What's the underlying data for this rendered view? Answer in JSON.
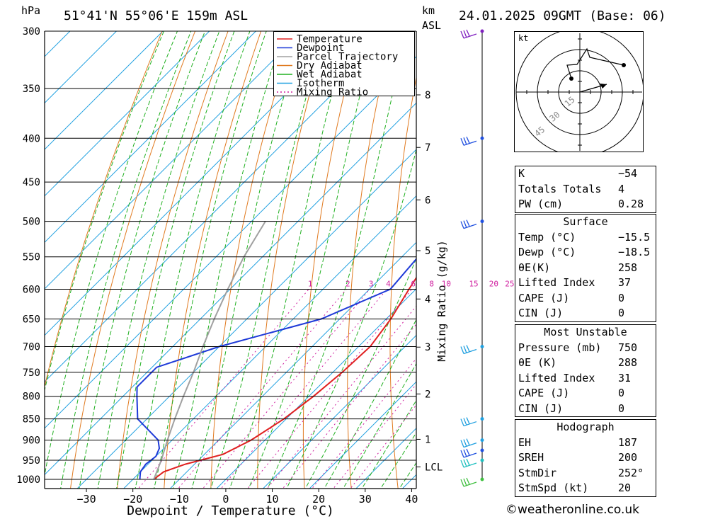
{
  "header": {
    "hpa_label": "hPa",
    "location": "51°41'N 55°06'E 159m ASL",
    "km_label": "km",
    "asl_label": "ASL",
    "datetime": "24.01.2025 09GMT (Base: 06)"
  },
  "colors": {
    "temperature": "#e02020",
    "dewpoint": "#1e3ad8",
    "parcel": "#a0a0a0",
    "dry_adiabat": "#e07a20",
    "wet_adiabat": "#20b020",
    "isotherm": "#1fa0e0",
    "mixing_ratio": "#d020a0"
  },
  "legend": [
    {
      "label": "Temperature",
      "color_key": "temperature",
      "dash": "solid"
    },
    {
      "label": "Dewpoint",
      "color_key": "dewpoint",
      "dash": "solid"
    },
    {
      "label": "Parcel Trajectory",
      "color_key": "parcel",
      "dash": "solid"
    },
    {
      "label": "Dry Adiabat",
      "color_key": "dry_adiabat",
      "dash": "solid"
    },
    {
      "label": "Wet Adiabat",
      "color_key": "wet_adiabat",
      "dash": "solid"
    },
    {
      "label": "Isotherm",
      "color_key": "isotherm",
      "dash": "solid"
    },
    {
      "label": "Mixing Ratio",
      "color_key": "mixing_ratio",
      "dash": "dotted"
    }
  ],
  "chart_data": {
    "type": "line",
    "xlabel": "Dewpoint / Temperature (°C)",
    "x_ticks": [
      -30,
      -20,
      -10,
      0,
      10,
      20,
      30,
      40
    ],
    "xlim": [
      -39,
      41
    ],
    "pressure_levels": [
      300,
      350,
      400,
      450,
      500,
      550,
      600,
      650,
      700,
      750,
      800,
      850,
      900,
      950,
      1000
    ],
    "ylim": [
      300,
      1025
    ],
    "km_ticks": [
      {
        "label": "8",
        "p": 356
      },
      {
        "label": "7",
        "p": 410
      },
      {
        "label": "6",
        "p": 472
      },
      {
        "label": "5",
        "p": 541
      },
      {
        "label": "4",
        "p": 616
      },
      {
        "label": "3",
        "p": 701
      },
      {
        "label": "2",
        "p": 795
      },
      {
        "label": "1",
        "p": 898
      },
      {
        "label": "LCL",
        "p": 967
      }
    ],
    "mixing_ratio_label": "Mixing Ratio (g/kg)",
    "mixing_ratios": [
      "1",
      "2",
      "3",
      "4",
      "6",
      "8",
      "10",
      "15",
      "20",
      "25"
    ],
    "series": [
      {
        "name": "Temperature",
        "points": [
          [
            -15.5,
            1000
          ],
          [
            -15,
            980
          ],
          [
            -12,
            960
          ],
          [
            -6,
            935
          ],
          [
            -3,
            900
          ],
          [
            -0.5,
            850
          ],
          [
            1,
            800
          ],
          [
            2,
            750
          ],
          [
            2.5,
            700
          ],
          [
            1,
            650
          ],
          [
            -1.5,
            600
          ],
          [
            -4,
            550
          ],
          [
            -6.5,
            500
          ],
          [
            -10,
            450
          ],
          [
            -13,
            400
          ],
          [
            -16,
            350
          ]
        ]
      },
      {
        "name": "Dewpoint",
        "points": [
          [
            -18.5,
            1000
          ],
          [
            -20,
            980
          ],
          [
            -20.5,
            960
          ],
          [
            -20,
            940
          ],
          [
            -21,
            920
          ],
          [
            -23,
            900
          ],
          [
            -32,
            850
          ],
          [
            -37,
            800
          ],
          [
            -39,
            780
          ],
          [
            -39,
            740
          ],
          [
            -30,
            700
          ],
          [
            -14,
            650
          ],
          [
            -5.5,
            600
          ],
          [
            -6.5,
            550
          ],
          [
            -9.5,
            500
          ],
          [
            -11,
            450
          ],
          [
            -12,
            400
          ],
          [
            -12,
            350
          ],
          [
            -14,
            300
          ]
        ]
      },
      {
        "name": "Parcel Trajectory",
        "points": [
          [
            -15.5,
            1000
          ],
          [
            -18,
            950
          ],
          [
            -21,
            900
          ],
          [
            -24,
            850
          ],
          [
            -27,
            800
          ],
          [
            -30,
            750
          ],
          [
            -33.5,
            700
          ],
          [
            -37,
            650
          ],
          [
            -40.5,
            600
          ],
          [
            -44,
            550
          ],
          [
            -47,
            500
          ]
        ]
      }
    ]
  },
  "hodograph": {
    "unit": "kt",
    "ring_labels": [
      "15",
      "30",
      "45"
    ]
  },
  "indices": {
    "top": [
      {
        "label": "K",
        "value": "-54"
      },
      {
        "label": "Totals Totals",
        "value": "4"
      },
      {
        "label": "PW (cm)",
        "value": "0.28"
      }
    ],
    "surface": {
      "title": "Surface",
      "rows": [
        {
          "label": "Temp (°C)",
          "value": "-15.5"
        },
        {
          "label": "Dewp (°C)",
          "value": "-18.5"
        },
        {
          "label": "θE(K)",
          "value": "258"
        },
        {
          "label": "Lifted Index",
          "value": "37"
        },
        {
          "label": "CAPE (J)",
          "value": "0"
        },
        {
          "label": "CIN (J)",
          "value": "0"
        }
      ]
    },
    "most_unstable": {
      "title": "Most Unstable",
      "rows": [
        {
          "label": "Pressure (mb)",
          "value": "750"
        },
        {
          "label": "θE (K)",
          "value": "288"
        },
        {
          "label": "Lifted Index",
          "value": "31"
        },
        {
          "label": "CAPE (J)",
          "value": "0"
        },
        {
          "label": "CIN (J)",
          "value": "0"
        }
      ]
    },
    "hodograph_table": {
      "title": "Hodograph",
      "rows": [
        {
          "label": "EH",
          "value": "187"
        },
        {
          "label": "SREH",
          "value": "200"
        },
        {
          "label": "StmDir",
          "value": "252°"
        },
        {
          "label": "StmSpd (kt)",
          "value": "20"
        }
      ]
    }
  },
  "footer": "©weatheronline.co.uk"
}
